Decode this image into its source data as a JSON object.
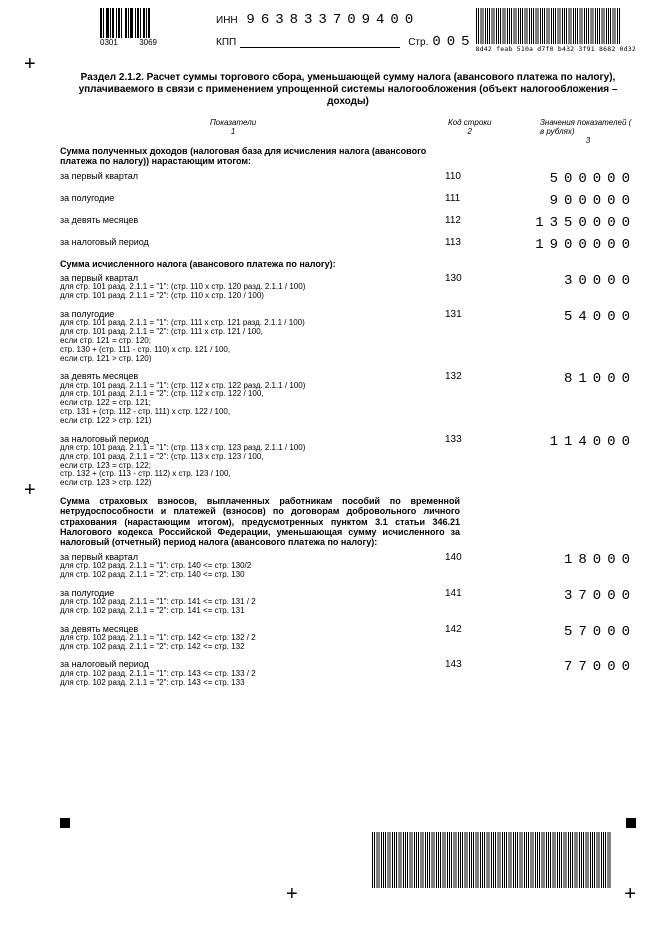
{
  "header": {
    "inn_label": "ИНН",
    "inn": "963833709400",
    "kpp_label": "КПП",
    "page_label": "Стр.",
    "page_number": "005",
    "barcode_left": "0301",
    "barcode_right": "3069",
    "pdf417_hash": "8d42 feab 510a d7f0 b432 3f91 8682 0d32"
  },
  "title": "Раздел 2.1.2. Расчет суммы торгового сбора, уменьшающей сумму налога (авансового платежа по налогу), уплачиваемого в связи с применением упрощенной системы налогообложения (объект налогообложения – доходы)",
  "column_headers": {
    "c1": "Показатели",
    "c1n": "1",
    "c2": "Код строки",
    "c2n": "2",
    "c3": "Значения показателей ( в рублях)",
    "c3n": "3"
  },
  "groups": [
    {
      "heading": "Сумма полученных доходов (налоговая база для исчисления налога (авансового платежа по налогу)) нарастающим итогом:",
      "rows": [
        {
          "label": "за первый квартал",
          "code": "110",
          "val": "500000"
        },
        {
          "label": "за полугодие",
          "code": "111",
          "val": "900000"
        },
        {
          "label": "за девять месяцев",
          "code": "112",
          "val": "1350000"
        },
        {
          "label": "за налоговый период",
          "code": "113",
          "val": "1900000"
        }
      ]
    },
    {
      "heading": "Сумма исчисленного налога (авансового платежа по налогу):",
      "rows": [
        {
          "label": "за первый квартал",
          "sub": [
            "для стр. 101 разд. 2.1.1 = \"1\": (стр. 110 х стр. 120 разд. 2.1.1 / 100)",
            "для стр. 101 разд. 2.1.1 = \"2\": (стр. 110 х стр. 120 / 100)"
          ],
          "code": "130",
          "val": "30000"
        },
        {
          "label": "за полугодие",
          "sub": [
            "для стр. 101 разд. 2.1.1 = \"1\": (стр. 111 х стр. 121 разд. 2.1.1 / 100)",
            "для стр. 101 разд. 2.1.1 = \"2\": (стр. 111 х стр. 121 / 100,",
            "если стр. 121 = стр. 120;",
            "стр. 130 + (стр. 111 - стр. 110) х стр. 121 / 100,",
            "если стр. 121 > стр. 120)"
          ],
          "code": "131",
          "val": "54000"
        },
        {
          "label": "за девять месяцев",
          "sub": [
            "для стр. 101 разд. 2.1.1 = \"1\": (стр. 112 х стр. 122 разд. 2.1.1 / 100)",
            "для стр. 101 разд. 2.1.1 = \"2\": (стр. 112 х стр. 122 / 100,",
            "если стр. 122 = стр. 121;",
            "стр. 131 + (стр. 112 - стр. 111) х стр. 122 / 100,",
            "если стр. 122 > стр. 121)"
          ],
          "code": "132",
          "val": "81000"
        },
        {
          "label": "за налоговый период",
          "sub": [
            "для стр. 101 разд. 2.1.1 = \"1\": (стр. 113 х стр. 123 разд. 2.1.1 / 100)",
            "для стр. 101 разд. 2.1.1 = \"2\": (стр. 113 х стр. 123 / 100,",
            "если стр. 123 = стр. 122;",
            "стр. 132 + (стр. 113 - стр. 112) х стр. 123 / 100,",
            "если стр. 123 > стр. 122)"
          ],
          "code": "133",
          "val": "114000"
        }
      ]
    },
    {
      "heading": "Сумма страховых взносов, выплаченных работникам пособий по временной нетрудоспособности и платежей (взносов) по договорам добровольного личного страхования (нарастающим итогом), предусмотренных пунктом 3.1 статьи 346.21 Налогового кодекса Российской Федерации, уменьшающая сумму исчисленного за налоговый (отчетный) период налога (авансового платежа по налогу):",
      "justify": true,
      "rows": [
        {
          "label": "за первый квартал",
          "sub": [
            "для стр. 102 разд. 2.1.1 = \"1\": стр. 140 <= стр. 130/2",
            "для стр. 102 разд. 2.1.1 = \"2\": стр. 140 <= стр. 130"
          ],
          "code": "140",
          "val": "18000"
        },
        {
          "label": "за полугодие",
          "sub": [
            "для стр. 102 разд. 2.1.1 = \"1\": стр. 141 <= стр. 131 / 2",
            "для стр. 102 разд. 2.1.1 = \"2\": стр. 141 <= стр. 131"
          ],
          "code": "141",
          "val": "37000"
        },
        {
          "label": "за девять месяцев",
          "sub": [
            "для стр. 102 разд. 2.1.1 = \"1\": стр. 142 <= стр. 132 / 2",
            "для стр. 102 разд. 2.1.1 = \"2\": стр. 142 <= стр. 132"
          ],
          "code": "142",
          "val": "57000"
        },
        {
          "label": "за налоговый период",
          "sub": [
            "для стр. 102 разд. 2.1.1 = \"1\": стр. 143 <= стр. 133 / 2",
            "для стр. 102 разд. 2.1.1 = \"2\": стр. 143 <= стр. 133"
          ],
          "code": "143",
          "val": "77000"
        }
      ]
    }
  ],
  "reg_mark": "+",
  "colors": {
    "fg": "#000000",
    "bg": "#ffffff"
  }
}
